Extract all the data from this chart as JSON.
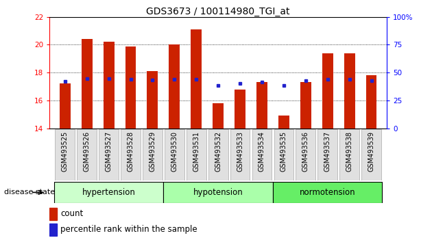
{
  "title": "GDS3673 / 100114980_TGI_at",
  "samples": [
    "GSM493525",
    "GSM493526",
    "GSM493527",
    "GSM493528",
    "GSM493529",
    "GSM493530",
    "GSM493531",
    "GSM493532",
    "GSM493533",
    "GSM493534",
    "GSM493535",
    "GSM493536",
    "GSM493537",
    "GSM493538",
    "GSM493539"
  ],
  "bar_values": [
    17.2,
    20.4,
    20.2,
    19.9,
    18.1,
    20.0,
    21.1,
    15.8,
    16.8,
    17.3,
    14.9,
    17.3,
    19.4,
    19.4,
    17.8
  ],
  "bar_bottom": 14.0,
  "blue_dot_values": [
    17.35,
    17.55,
    17.55,
    17.5,
    17.45,
    17.5,
    17.5,
    17.1,
    17.2,
    17.3,
    17.1,
    17.4,
    17.5,
    17.5,
    17.4
  ],
  "bar_color": "#cc2200",
  "dot_color": "#2222cc",
  "ylim_left": [
    14,
    22
  ],
  "ylim_right": [
    0,
    100
  ],
  "yticks_left": [
    14,
    16,
    18,
    20,
    22
  ],
  "yticks_right": [
    0,
    25,
    50,
    75,
    100
  ],
  "ytick_labels_right": [
    "0",
    "25",
    "50",
    "75",
    "100%"
  ],
  "groups": [
    {
      "label": "hypertension",
      "start": 0,
      "end": 5,
      "color": "#ccffcc"
    },
    {
      "label": "hypotension",
      "start": 5,
      "end": 10,
      "color": "#aaffaa"
    },
    {
      "label": "normotension",
      "start": 10,
      "end": 15,
      "color": "#66ee66"
    }
  ],
  "legend_count_label": "count",
  "legend_pct_label": "percentile rank within the sample",
  "disease_state_label": "disease state",
  "bar_width": 0.5,
  "bg_color": "#ffffff"
}
